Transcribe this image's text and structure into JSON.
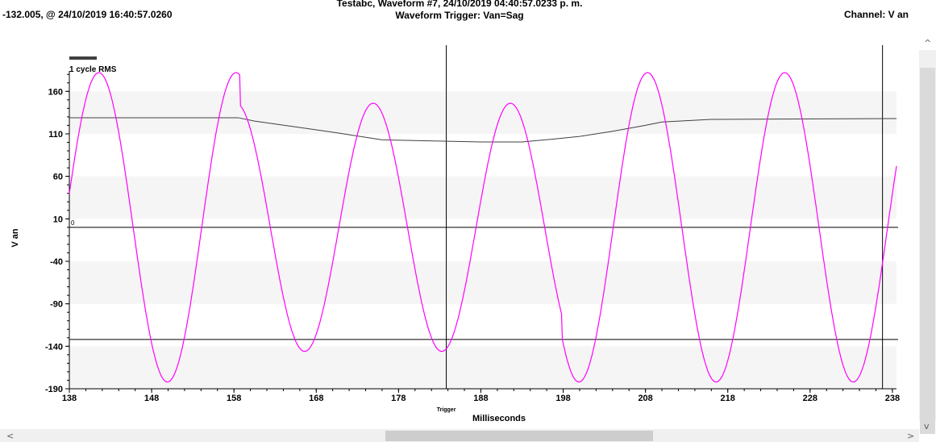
{
  "header": {
    "title": "Testabc, Waveform #7, 24/10/2019 04:40:57.0233 p. m.",
    "subtitle": "Waveform Trigger: Van=Sag",
    "cursor_readout": "-132.005, @ 24/10/2019 16:40:57.0260",
    "channel": "Channel:  V an"
  },
  "chart_data": {
    "type": "line",
    "xlabel": "Milliseconds",
    "ylabel": "V an",
    "xlim": [
      138,
      238.5
    ],
    "ylim": [
      -190,
      184
    ],
    "x_ticks": [
      138,
      148,
      158,
      168,
      178,
      188,
      198,
      208,
      218,
      228,
      238
    ],
    "y_ticks": [
      160,
      110,
      60,
      10,
      -40,
      -90,
      -140,
      -190
    ],
    "zero_label": "0",
    "trigger_label": "Trigger",
    "trigger_x": 183.8,
    "legend": {
      "label": "1 cycle RMS",
      "placement": "top-left"
    },
    "banded_background": true,
    "horizontal_cursor_y": -132.005,
    "vertical_cursor_x": 236.8,
    "series": [
      {
        "key": "rms",
        "color": "#404040",
        "points": [
          [
            138,
            129
          ],
          [
            158.5,
            129
          ],
          [
            160.5,
            125
          ],
          [
            170,
            112
          ],
          [
            176,
            103
          ],
          [
            188,
            100.5
          ],
          [
            193,
            100.5
          ],
          [
            197,
            104
          ],
          [
            200,
            107
          ],
          [
            204,
            113
          ],
          [
            208,
            120
          ],
          [
            210,
            124
          ],
          [
            216,
            127
          ],
          [
            238.5,
            128
          ]
        ]
      },
      {
        "key": "waveform",
        "color": "#ff00ff",
        "sine": {
          "frequency_hz": 60,
          "phase_zero_ms": 137.42,
          "sag_start_ms": 158.75,
          "sag_end_ms": 197.8,
          "amplitude_normal": 182,
          "amplitude_sag": 146
        }
      }
    ],
    "colors": {
      "waveform": "#ff00ff",
      "rms": "#404040",
      "band": "#f5f5f5",
      "axis": "#000000"
    }
  },
  "scrollbars": {
    "up": "^",
    "down": "v",
    "left": "<",
    "right": ">"
  }
}
